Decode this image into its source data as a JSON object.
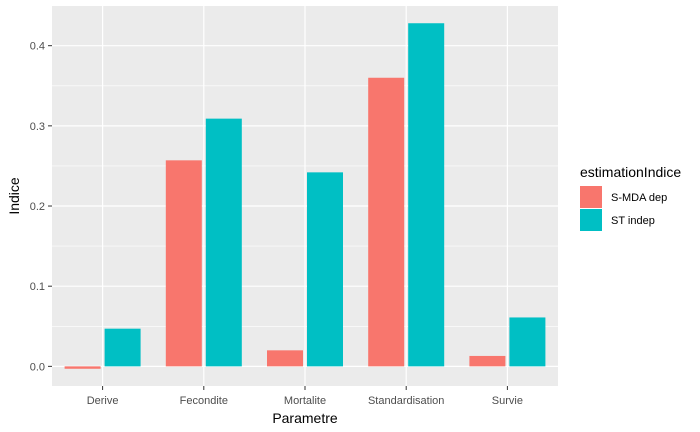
{
  "chart_data": {
    "type": "bar",
    "categories": [
      "Derive",
      "Fecondite",
      "Mortalite",
      "Standardisation",
      "Survie"
    ],
    "series": [
      {
        "name": "S-MDA dep",
        "values": [
          -0.003,
          0.257,
          0.02,
          0.36,
          0.013
        ],
        "color": "#F8766D"
      },
      {
        "name": "ST indep",
        "values": [
          0.047,
          0.309,
          0.242,
          0.428,
          0.061
        ],
        "color": "#00BFC4"
      }
    ],
    "xlabel": "Parametre",
    "ylabel": "Indice",
    "yticks": [
      "0.0",
      "0.1",
      "0.2",
      "0.3",
      "0.4"
    ],
    "ylim": [
      -0.0245,
      0.4495
    ],
    "legend_title": "estimationIndice",
    "legend_position": "right",
    "grid": true,
    "panel_background": "#EBEBEB"
  }
}
